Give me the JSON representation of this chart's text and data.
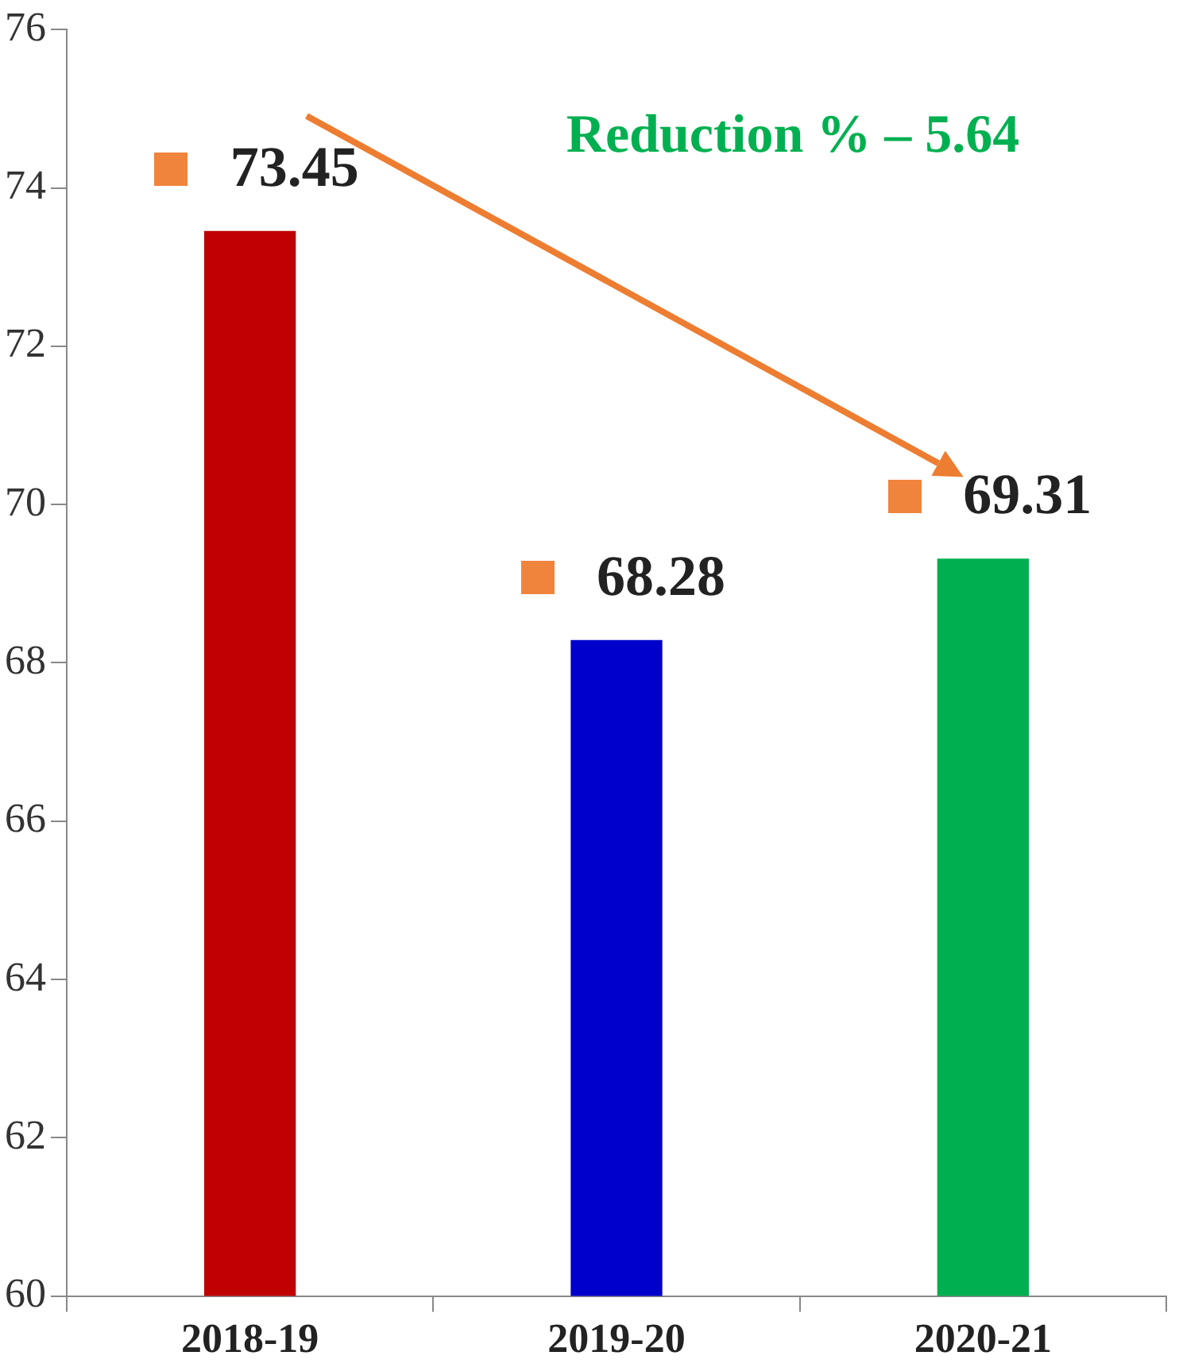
{
  "chart_data": {
    "type": "bar",
    "categories": [
      "2018-19",
      "2019-20",
      "2020-21"
    ],
    "values": [
      73.45,
      68.28,
      69.31
    ],
    "colors": [
      "#c00000",
      "#0000cc",
      "#00b050"
    ],
    "ylim": [
      60,
      76
    ],
    "yticks": [
      60,
      62,
      64,
      66,
      68,
      70,
      72,
      74,
      76
    ],
    "data_labels": true,
    "annotations": [
      "Reduction % – 5.64"
    ]
  }
}
